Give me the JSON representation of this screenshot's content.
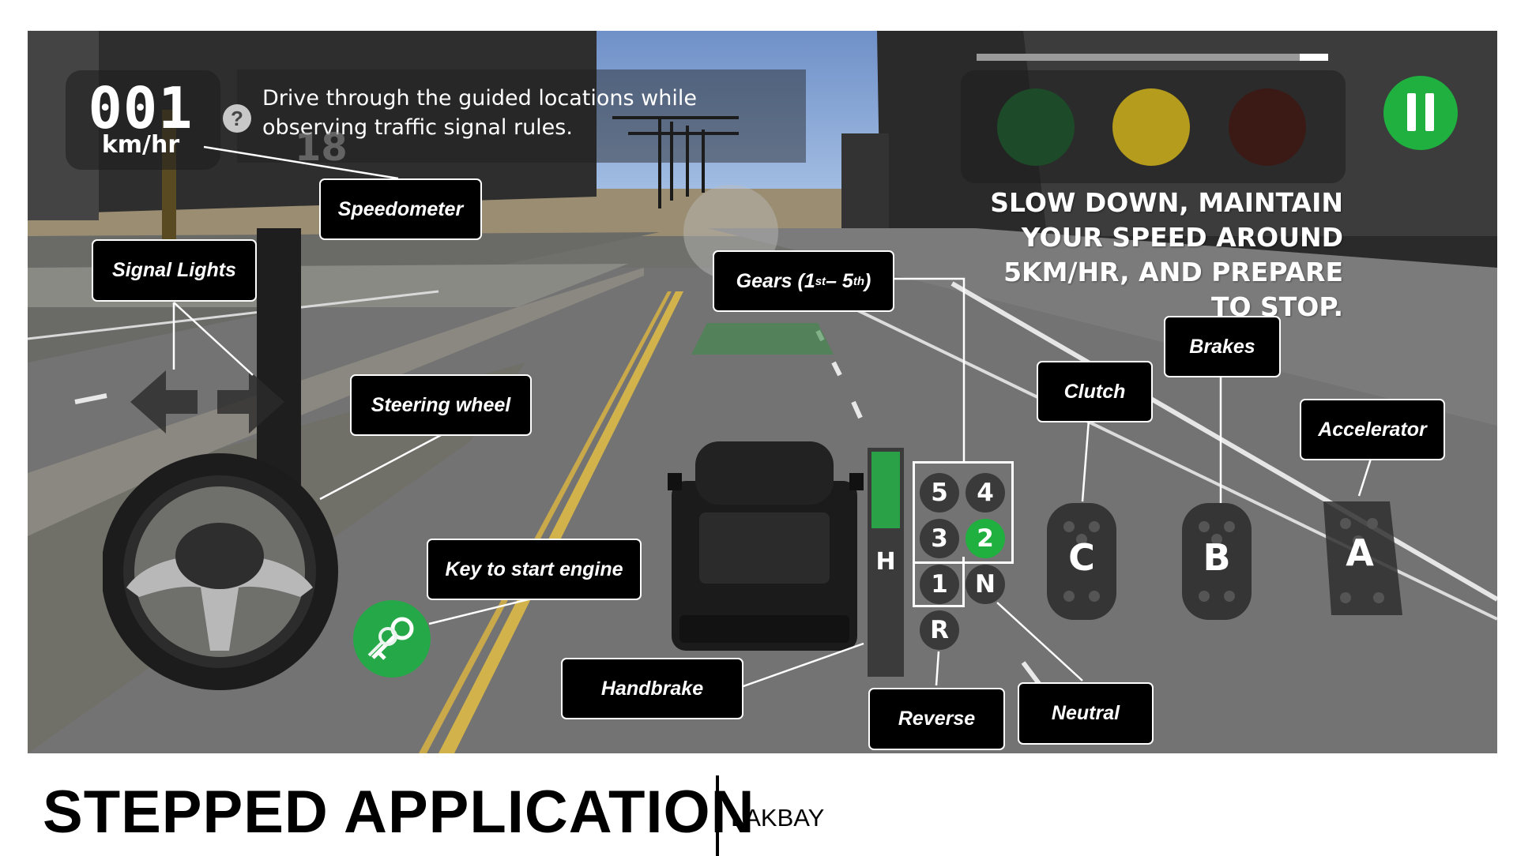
{
  "hud": {
    "speed_value": "001",
    "speed_unit": "km/hr",
    "help_label": "?",
    "instruction": "Drive through the guided locations while observing traffic signal rules.",
    "progress_fraction": 0.92,
    "traffic_lights": [
      {
        "name": "green",
        "color": "#1d4a28",
        "state": "off"
      },
      {
        "name": "yellow",
        "color": "#b59c1c",
        "state": "on"
      },
      {
        "name": "red",
        "color": "#3b1a16",
        "state": "off"
      }
    ],
    "advice": "SLOW DOWN, MAINTAIN YOUR SPEED AROUND 5KM/HR, AND PREPARE TO STOP.",
    "pause_icon": "pause-icon"
  },
  "controls": {
    "gears": [
      "5",
      "4",
      "3",
      "2",
      "1",
      "N",
      "R"
    ],
    "active_gear": "2",
    "handbrake_label": "H",
    "pedals": [
      "C",
      "B",
      "A"
    ],
    "key_icon": "key-icon",
    "steering_icon": "steering-wheel-icon",
    "signal_icons": [
      "left-arrow-icon",
      "right-arrow-icon"
    ]
  },
  "callouts": {
    "speedometer": "Speedometer",
    "signal_lights": "Signal Lights",
    "steering_wheel": "Steering wheel",
    "gears_prefix": "Gears (1",
    "gears_sup1": "st",
    "gears_mid": " – 5",
    "gears_sup2": "th",
    "gears_suffix": ")",
    "brakes": "Brakes",
    "clutch": "Clutch",
    "accelerator": "Accelerator",
    "key": "Key to start engine",
    "handbrake": "Handbrake",
    "reverse": "Reverse",
    "neutral": "Neutral"
  },
  "scene": {
    "road_sign": "18"
  },
  "footer": {
    "title": "STEPPED APPLICATION",
    "subtitle": "LAKBAY"
  },
  "colors": {
    "accent_green": "#1fb03f",
    "callout_bg": "#000000"
  }
}
